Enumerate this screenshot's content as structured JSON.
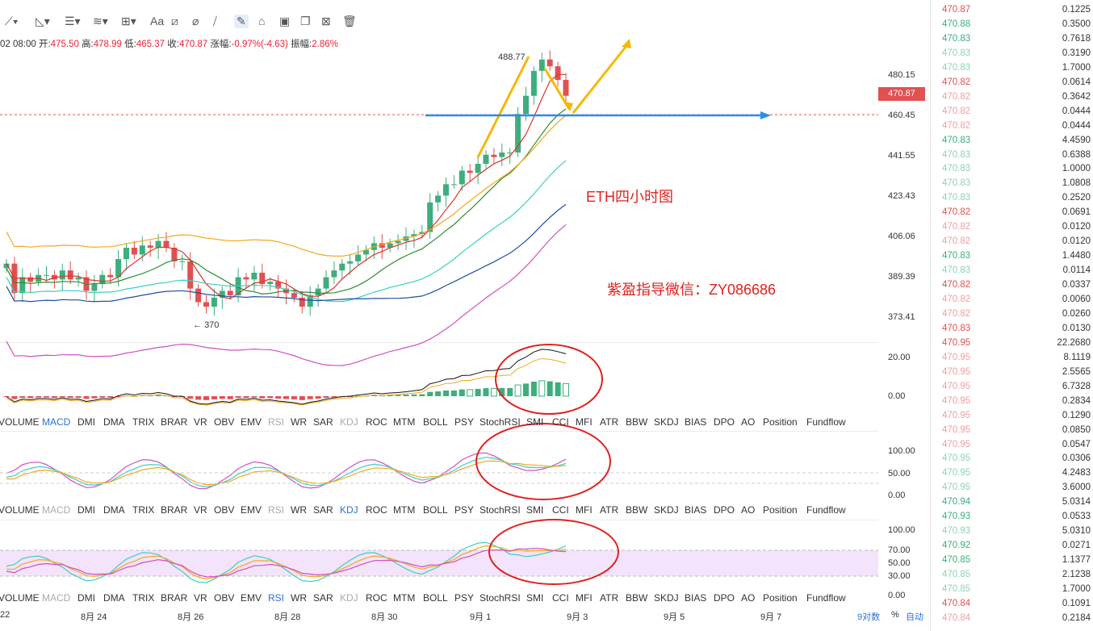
{
  "toolbar": {
    "icons": [
      "trendline-icon",
      "ray-icon",
      "parallel-lines-icon",
      "wave-icon",
      "crosshair-box-icon",
      "text-icon",
      "brush-icon",
      "eraser-icon",
      "ruler-icon",
      "pencil-icon",
      "lock-icon",
      "copy-icon",
      "image-icon",
      "trash-icon"
    ],
    "text_tool": "Aa"
  },
  "info": {
    "date": "02 08:00",
    "open_label": "开:",
    "open": "475.50",
    "high_label": "高:",
    "high": "478.99",
    "low_label": "低:",
    "low": "465.37",
    "close_label": "收:",
    "close": "470.87",
    "change_label": "涨幅:",
    "change": "-0.97%(-4.63)",
    "amp_label": "振幅:",
    "amp": "2.86%"
  },
  "price_axis": [
    "480.15",
    "460.45",
    "441.55",
    "423.43",
    "406.06",
    "389.39",
    "373.41"
  ],
  "current_price": "470.87",
  "annotations": {
    "high_label": "488.77",
    "low_label": "370",
    "chart_title": "ETH四小时图",
    "contact": "紫盈指导微信：ZY086686"
  },
  "macd_axis": [
    "20.00",
    "0.00"
  ],
  "kdj_axis": [
    "100.00",
    "50.00",
    "0.00"
  ],
  "rsi_axis": [
    "100.00",
    "70.00",
    "50.00",
    "30.00",
    "0.00"
  ],
  "indicators": [
    "VOLUME",
    "MACD",
    "DMI",
    "DMA",
    "TRIX",
    "BRAR",
    "VR",
    "OBV",
    "EMV",
    "RSI",
    "WR",
    "SAR",
    "KDJ",
    "ROC",
    "MTM",
    "BOLL",
    "PSY",
    "StochRSI",
    "SMI",
    "CCI",
    "MFI",
    "ATR",
    "BBW",
    "SKDJ",
    "BIAS",
    "DPO",
    "AO",
    "Position",
    "Fundflow"
  ],
  "date_axis": [
    "22",
    "8月 24",
    "8月 26",
    "8月 28",
    "8月 30",
    "9月 1",
    "9月 3",
    "9月 5",
    "9月 7"
  ],
  "axis_controls": {
    "log": "9对数",
    "percent": "%",
    "auto": "自动"
  },
  "trades": [
    {
      "p": "470.87",
      "q": "0.1225",
      "side": "sell"
    },
    {
      "p": "470.88",
      "q": "0.3500",
      "side": "buy"
    },
    {
      "p": "470.83",
      "q": "0.7618",
      "side": "buy"
    },
    {
      "p": "470.83",
      "q": "0.3190",
      "side": "buy-light"
    },
    {
      "p": "470.83",
      "q": "1.7000",
      "side": "buy-light"
    },
    {
      "p": "470.82",
      "q": "0.0614",
      "side": "sell"
    },
    {
      "p": "470.82",
      "q": "0.3642",
      "side": "sell-light"
    },
    {
      "p": "470.82",
      "q": "0.0444",
      "side": "sell-light"
    },
    {
      "p": "470.82",
      "q": "0.0444",
      "side": "sell-light"
    },
    {
      "p": "470.83",
      "q": "4.4590",
      "side": "buy"
    },
    {
      "p": "470.83",
      "q": "0.6388",
      "side": "buy-light"
    },
    {
      "p": "470.83",
      "q": "1.0000",
      "side": "buy-light"
    },
    {
      "p": "470.83",
      "q": "1.0808",
      "side": "buy-light"
    },
    {
      "p": "470.83",
      "q": "0.2520",
      "side": "buy-light"
    },
    {
      "p": "470.82",
      "q": "0.0691",
      "side": "sell"
    },
    {
      "p": "470.82",
      "q": "0.0120",
      "side": "sell-light"
    },
    {
      "p": "470.82",
      "q": "0.0120",
      "side": "sell-light"
    },
    {
      "p": "470.83",
      "q": "1.4480",
      "side": "buy"
    },
    {
      "p": "470.83",
      "q": "0.0114",
      "side": "buy-light"
    },
    {
      "p": "470.82",
      "q": "0.0337",
      "side": "sell"
    },
    {
      "p": "470.82",
      "q": "0.0060",
      "side": "sell-light"
    },
    {
      "p": "470.82",
      "q": "0.0260",
      "side": "sell-light"
    },
    {
      "p": "470.83",
      "q": "0.0130",
      "side": "sell"
    },
    {
      "p": "470.95",
      "q": "22.2680",
      "side": "sell"
    },
    {
      "p": "470.95",
      "q": "8.1119",
      "side": "sell-light"
    },
    {
      "p": "470.95",
      "q": "2.5565",
      "side": "sell-light"
    },
    {
      "p": "470.95",
      "q": "6.7328",
      "side": "sell-light"
    },
    {
      "p": "470.95",
      "q": "0.2834",
      "side": "sell-light"
    },
    {
      "p": "470.95",
      "q": "0.1290",
      "side": "sell-light"
    },
    {
      "p": "470.95",
      "q": "0.0850",
      "side": "sell-light"
    },
    {
      "p": "470.95",
      "q": "0.0547",
      "side": "sell-light"
    },
    {
      "p": "470.95",
      "q": "0.0306",
      "side": "buy-light"
    },
    {
      "p": "470.95",
      "q": "4.2483",
      "side": "buy-light"
    },
    {
      "p": "470.95",
      "q": "3.6000",
      "side": "buy-light"
    },
    {
      "p": "470.94",
      "q": "5.0314",
      "side": "buy"
    },
    {
      "p": "470.93",
      "q": "0.0533",
      "side": "buy"
    },
    {
      "p": "470.93",
      "q": "5.0310",
      "side": "buy-light"
    },
    {
      "p": "470.92",
      "q": "0.0271",
      "side": "buy"
    },
    {
      "p": "470.85",
      "q": "1.1377",
      "side": "buy"
    },
    {
      "p": "470.85",
      "q": "2.1238",
      "side": "buy-light"
    },
    {
      "p": "470.85",
      "q": "1.7000",
      "side": "buy-light"
    },
    {
      "p": "470.84",
      "q": "0.1091",
      "side": "sell"
    },
    {
      "p": "470.84",
      "q": "0.2184",
      "side": "sell-light"
    }
  ],
  "colors": {
    "up": "#3dae7c",
    "down": "#e25050",
    "up_light": "#8fd2b2",
    "down_light": "#efa0a0",
    "ma_fast": "#d9342b",
    "ma_mid": "#2e8b2e",
    "ma_slow": "#3ad0c0",
    "ma_long": "#1f4fa3",
    "boll": "#f2a81c",
    "boll_low": "#d24fc0",
    "arrow_yellow": "#f5b800",
    "arrow_blue": "#2b8ee8",
    "circle": "#e0221e",
    "highlight": "#2d6fd9"
  }
}
